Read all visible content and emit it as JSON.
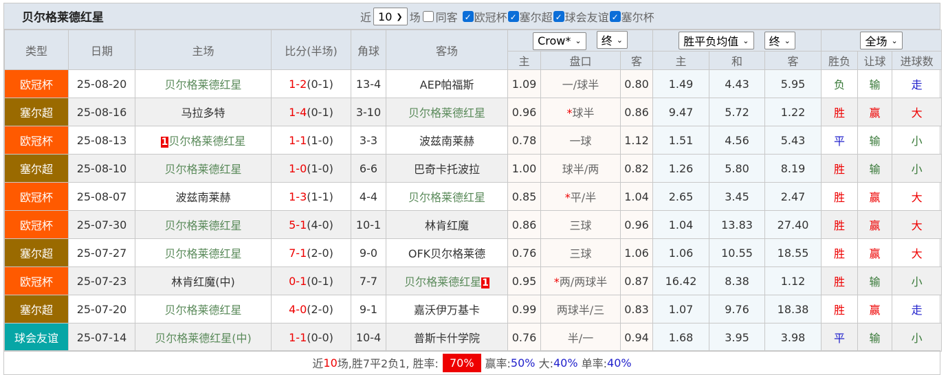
{
  "title": "贝尔格莱德红星",
  "filters": {
    "recent_label": "近",
    "recent_value": "10",
    "games_label": "场",
    "same_label": "同客",
    "same_checked": false,
    "competitions": [
      {
        "label": "欧冠杯",
        "checked": true
      },
      {
        "label": "塞尔超",
        "checked": true
      },
      {
        "label": "球会友谊",
        "checked": true
      },
      {
        "label": "塞尔杯",
        "checked": true
      }
    ]
  },
  "header": {
    "type": "类型",
    "date": "日期",
    "home": "主场",
    "score": "比分(半场)",
    "corner": "角球",
    "away": "客场",
    "company": "Crow*",
    "odds_time": "终",
    "spf": "胜平负均值",
    "spf_time": "终",
    "scope": "全场",
    "sub": [
      "主",
      "盘口",
      "客",
      "主",
      "和",
      "客",
      "胜负",
      "让球",
      "进球数"
    ]
  },
  "colors": {
    "欧冠杯": "#ff5a00",
    "塞尔超": "#9a6a00",
    "球会友谊": "#07a6a6",
    "red": "#ee0000",
    "blue": "#2222cc",
    "green": "#3a7a3a"
  },
  "rows": [
    {
      "type": "欧冠杯",
      "date": "25-08-20",
      "home": "贝尔格莱德红星",
      "home_badge": "",
      "score": "1-2",
      "half": "(0-1)",
      "corner": "13-4",
      "away": "AEP帕福斯",
      "away_badge": "",
      "hw": "1.09",
      "line": "一/球半",
      "star": false,
      "aw": "0.80",
      "s1": "1.49",
      "s2": "4.43",
      "s3": "5.95",
      "r1": "负",
      "r2": "输",
      "r3": "走"
    },
    {
      "type": "塞尔超",
      "date": "25-08-16",
      "home": "马拉多特",
      "home_badge": "",
      "score": "1-4",
      "half": "(0-1)",
      "corner": "3-10",
      "away": "贝尔格莱德红星",
      "away_badge": "",
      "hw": "0.96",
      "line": "球半",
      "star": true,
      "aw": "0.86",
      "s1": "9.47",
      "s2": "5.72",
      "s3": "1.22",
      "r1": "胜",
      "r2": "赢",
      "r3": "大"
    },
    {
      "type": "欧冠杯",
      "date": "25-08-13",
      "home": "贝尔格莱德红星",
      "home_badge": "1",
      "score": "1-1",
      "half": "(1-0)",
      "corner": "3-3",
      "away": "波兹南莱赫",
      "away_badge": "",
      "hw": "0.78",
      "line": "一球",
      "star": false,
      "aw": "1.12",
      "s1": "1.51",
      "s2": "4.56",
      "s3": "5.43",
      "r1": "平",
      "r2": "输",
      "r3": "小"
    },
    {
      "type": "塞尔超",
      "date": "25-08-10",
      "home": "贝尔格莱德红星",
      "home_badge": "",
      "score": "1-0",
      "half": "(1-0)",
      "corner": "6-6",
      "away": "巴奇卡托波拉",
      "away_badge": "",
      "hw": "1.00",
      "line": "球半/两",
      "star": false,
      "aw": "0.82",
      "s1": "1.26",
      "s2": "5.80",
      "s3": "8.19",
      "r1": "胜",
      "r2": "输",
      "r3": "小"
    },
    {
      "type": "欧冠杯",
      "date": "25-08-07",
      "home": "波兹南莱赫",
      "home_badge": "",
      "score": "1-3",
      "half": "(1-1)",
      "corner": "4-4",
      "away": "贝尔格莱德红星",
      "away_badge": "",
      "hw": "0.85",
      "line": "平/半",
      "star": true,
      "aw": "1.04",
      "s1": "2.65",
      "s2": "3.45",
      "s3": "2.47",
      "r1": "胜",
      "r2": "赢",
      "r3": "大"
    },
    {
      "type": "欧冠杯",
      "date": "25-07-30",
      "home": "贝尔格莱德红星",
      "home_badge": "",
      "score": "5-1",
      "half": "(4-0)",
      "corner": "10-1",
      "away": "林肯红魔",
      "away_badge": "",
      "hw": "0.86",
      "line": "三球",
      "star": false,
      "aw": "0.96",
      "s1": "1.04",
      "s2": "13.83",
      "s3": "27.40",
      "r1": "胜",
      "r2": "赢",
      "r3": "大"
    },
    {
      "type": "塞尔超",
      "date": "25-07-27",
      "home": "贝尔格莱德红星",
      "home_badge": "",
      "score": "7-1",
      "half": "(2-0)",
      "corner": "9-0",
      "away": "OFK贝尔格莱德",
      "away_badge": "",
      "hw": "0.76",
      "line": "三球",
      "star": false,
      "aw": "1.06",
      "s1": "1.06",
      "s2": "10.55",
      "s3": "18.55",
      "r1": "胜",
      "r2": "赢",
      "r3": "大"
    },
    {
      "type": "欧冠杯",
      "date": "25-07-23",
      "home": "林肯红魔(中)",
      "home_badge": "",
      "score": "0-1",
      "half": "(0-1)",
      "corner": "7-7",
      "away": "贝尔格莱德红星",
      "away_badge": "1",
      "hw": "0.95",
      "line": "两/两球半",
      "star": true,
      "aw": "0.87",
      "s1": "16.42",
      "s2": "8.38",
      "s3": "1.12",
      "r1": "胜",
      "r2": "输",
      "r3": "小"
    },
    {
      "type": "塞尔超",
      "date": "25-07-20",
      "home": "贝尔格莱德红星",
      "home_badge": "",
      "score": "4-0",
      "half": "(2-0)",
      "corner": "9-1",
      "away": "嘉沃伊万基卡",
      "away_badge": "",
      "hw": "0.99",
      "line": "两球半/三",
      "star": false,
      "aw": "0.83",
      "s1": "1.07",
      "s2": "9.76",
      "s3": "18.38",
      "r1": "胜",
      "r2": "赢",
      "r3": "走"
    },
    {
      "type": "球会友谊",
      "date": "25-07-14",
      "home": "贝尔格莱德红星(中)",
      "home_badge": "",
      "score": "1-1",
      "half": "(0-0)",
      "corner": "10-4",
      "away": "普斯卡什学院",
      "away_badge": "",
      "hw": "0.76",
      "line": "半/一",
      "star": false,
      "aw": "0.94",
      "s1": "1.68",
      "s2": "3.95",
      "s3": "3.98",
      "r1": "平",
      "r2": "输",
      "r3": "小"
    }
  ],
  "summary": {
    "prefix": "近",
    "count": "10",
    "mid": "场,胜7平2负1, 胜率:",
    "win_rate": "70%",
    "ying_label": "赢率:",
    "ying": "50%",
    "big_label": "大:",
    "big": "40%",
    "odd_label": "单率:",
    "odd": "40%"
  }
}
